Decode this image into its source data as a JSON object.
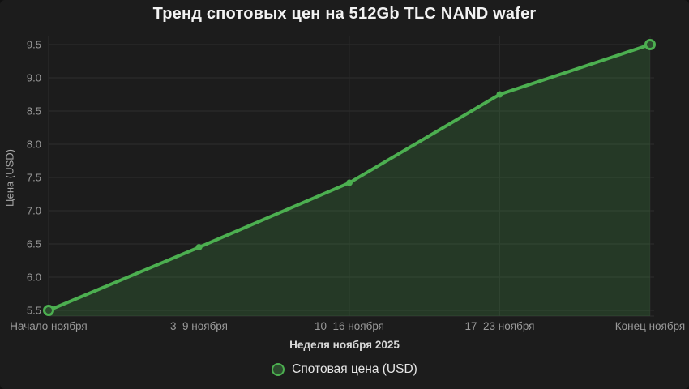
{
  "title": "Тренд спотовых цен на 512Gb TLC NAND wafer",
  "chart_data": {
    "type": "line",
    "title": "Тренд спотовых цен на 512Gb TLC NAND wafer",
    "categories": [
      "Начало ноября",
      "3–9 ноября",
      "10–16 ноября",
      "17–23 ноября",
      "Конец ноября"
    ],
    "series": [
      {
        "name": "Спотовая цена (USD)",
        "values": [
          5.5,
          6.45,
          7.42,
          8.75,
          9.5
        ]
      }
    ],
    "xlabel": "Неделя ноября 2025",
    "ylabel": "Цена (USD)",
    "ylim": [
      5.5,
      9.5
    ],
    "yticks": [
      5.5,
      6.0,
      6.5,
      7.0,
      7.5,
      8.0,
      8.5,
      9.0,
      9.5
    ],
    "grid": true,
    "legend_position": "bottom",
    "colors": {
      "background": "#1c1c1c",
      "line": "#4caf50",
      "area_fill": "rgba(76,175,80,0.20)",
      "marker_ring_fill": "#2c4a2e",
      "gridline": "#2e2e2e",
      "vertical_gridline": "#292929",
      "tick_text": "#9a9a9a",
      "title_text": "#f2f2f2"
    }
  }
}
